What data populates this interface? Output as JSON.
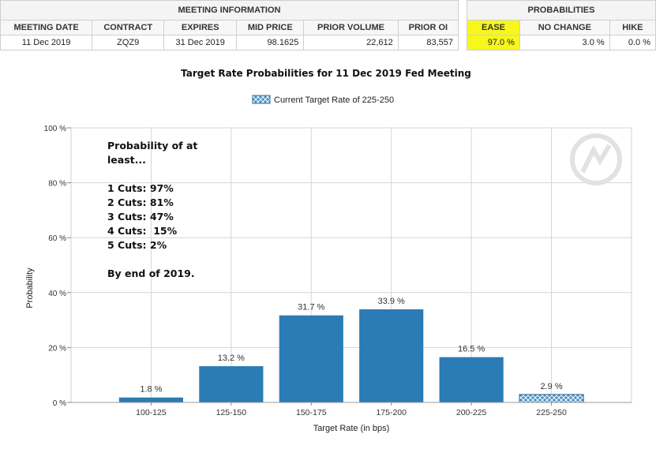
{
  "meeting_table": {
    "group_header": "MEETING INFORMATION",
    "columns": [
      "MEETING DATE",
      "CONTRACT",
      "EXPIRES",
      "MID PRICE",
      "PRIOR VOLUME",
      "PRIOR OI"
    ],
    "row": [
      "11 Dec 2019",
      "ZQZ9",
      "31 Dec 2019",
      "98.1625",
      "22,612",
      "83,557"
    ]
  },
  "probabilities_table": {
    "group_header": "PROBABILITIES",
    "columns": [
      "EASE",
      "NO CHANGE",
      "HIKE"
    ],
    "row": [
      "97.0 %",
      "3.0 %",
      "0.0 %"
    ],
    "highlight_color": "#f7f71c"
  },
  "chart_data": {
    "type": "bar",
    "title": "Target Rate Probabilities for 11 Dec 2019 Fed Meeting",
    "legend": {
      "label": "Current Target Rate of 225-250",
      "placement": "top-center"
    },
    "xlabel": "Target Rate (in bps)",
    "ylabel": "Probability",
    "categories": [
      "100-125",
      "125-150",
      "150-175",
      "175-200",
      "200-225",
      "225-250"
    ],
    "values": [
      1.8,
      13.2,
      31.7,
      33.9,
      16.5,
      2.9
    ],
    "value_labels": [
      "1.8 %",
      "13.2 %",
      "31.7 %",
      "33.9 %",
      "16.5 %",
      "2.9 %"
    ],
    "current_category": "225-250",
    "ylim": [
      0,
      100
    ],
    "yticks": [
      0,
      20,
      40,
      60,
      80,
      100
    ],
    "ytick_labels": [
      "0 %",
      "20 %",
      "40 %",
      "60 %",
      "80 %",
      "100 %"
    ],
    "grid": true,
    "bar_color": "#2b7bb6",
    "current_bar_color": "#4a90c4",
    "annotation": "Probability of at\nleast...\n\n1 Cuts: 97%\n2 Cuts: 81%\n3 Cuts: 47%\n4 Cuts:  15%\n5 Cuts: 2%\n\nBy end of 2019."
  }
}
